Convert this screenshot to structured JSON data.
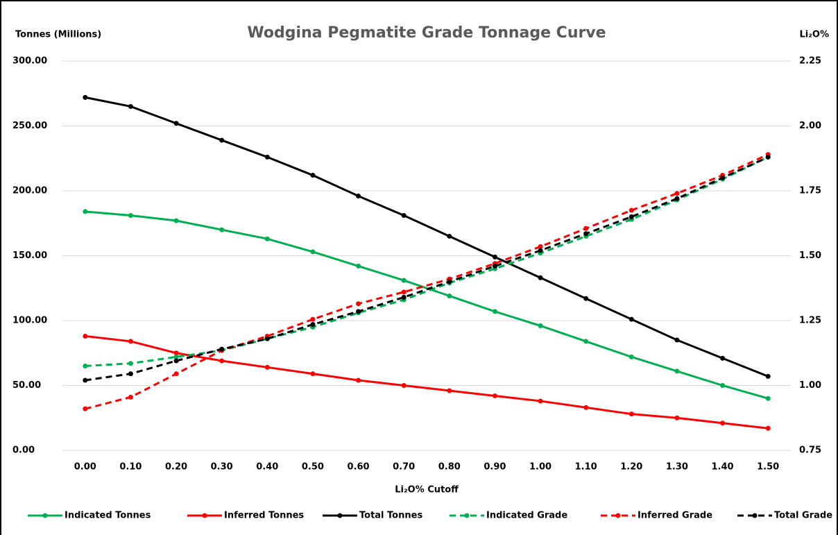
{
  "chart_data": {
    "type": "line",
    "title": "Wodgina Pegmatite Grade Tonnage Curve",
    "y_label": "Tonnes (Millions)",
    "y2_label": "Li₂O%",
    "x_label": "Li₂O% Cutoff",
    "categories": [
      "0.00",
      "0.10",
      "0.20",
      "0.30",
      "0.40",
      "0.50",
      "0.60",
      "0.70",
      "0.80",
      "0.90",
      "1.00",
      "1.10",
      "1.20",
      "1.30",
      "1.40",
      "1.50"
    ],
    "ylim": [
      0,
      300
    ],
    "yticks": [
      {
        "value": 0,
        "label": "0.00"
      },
      {
        "value": 50,
        "label": "50.00"
      },
      {
        "value": 100,
        "label": "100.00"
      },
      {
        "value": 150,
        "label": "150.00"
      },
      {
        "value": 200,
        "label": "200.00"
      },
      {
        "value": 250,
        "label": "250.00"
      },
      {
        "value": 300,
        "label": "300.00"
      }
    ],
    "y2lim": [
      0.75,
      2.25
    ],
    "y2ticks": [
      0.75,
      {
        "value": 1,
        "label": "1.00"
      },
      1.25,
      {
        "value": 1.5,
        "label": "1.50"
      },
      1.75,
      {
        "value": 2,
        "label": "2.00"
      },
      2.25
    ],
    "grid": true,
    "legend": "bottom",
    "series": [
      {
        "name": "Indicated Tonnes",
        "color": "#00b050",
        "line_style": "solid",
        "values": [
          184,
          181,
          177,
          170,
          163,
          153,
          142,
          131,
          119,
          107,
          96,
          84,
          72,
          61,
          50,
          40
        ]
      },
      {
        "name": "Inferred Tonnes",
        "color": "#ff0000",
        "line_style": "solid",
        "values": [
          88,
          84,
          75,
          69,
          64,
          59,
          54,
          50,
          46,
          42,
          38,
          33,
          28,
          25,
          21,
          17
        ]
      },
      {
        "name": "Total Tonnes",
        "color": "#000000",
        "line_style": "solid",
        "values": [
          272,
          265,
          252,
          239,
          226,
          212,
          196,
          181,
          165,
          149,
          133,
          117,
          101,
          85,
          71,
          57
        ]
      },
      {
        "name": "Indicated Grade",
        "color": "#00b050",
        "line_style": "dashed",
        "axis": "y2",
        "values": [
          1.075,
          1.085,
          1.11,
          1.135,
          1.18,
          1.225,
          1.28,
          1.33,
          1.395,
          1.45,
          1.51,
          1.575,
          1.64,
          1.715,
          1.795,
          1.88
        ]
      },
      {
        "name": "Inferred Grade",
        "color": "#ff0000",
        "line_style": "dashed",
        "axis": "y2",
        "values": [
          0.91,
          0.955,
          1.045,
          1.135,
          1.19,
          1.255,
          1.315,
          1.36,
          1.41,
          1.47,
          1.535,
          1.605,
          1.675,
          1.74,
          1.81,
          1.89
        ]
      },
      {
        "name": "Total Grade",
        "color": "#000000",
        "line_style": "dashed",
        "axis": "y2",
        "values": [
          1.02,
          1.045,
          1.095,
          1.14,
          1.18,
          1.235,
          1.285,
          1.34,
          1.4,
          1.46,
          1.52,
          1.585,
          1.65,
          1.72,
          1.8,
          1.88
        ]
      }
    ]
  }
}
